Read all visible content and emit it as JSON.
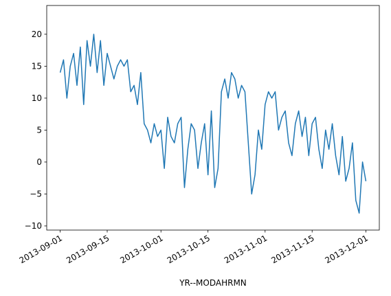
{
  "chart_data": {
    "type": "line",
    "xlabel": "YR--MODAHRMN",
    "x": [
      "2013-09-01",
      "2013-09-02",
      "2013-09-03",
      "2013-09-04",
      "2013-09-05",
      "2013-09-06",
      "2013-09-07",
      "2013-09-08",
      "2013-09-09",
      "2013-09-10",
      "2013-09-11",
      "2013-09-12",
      "2013-09-13",
      "2013-09-14",
      "2013-09-15",
      "2013-09-16",
      "2013-09-17",
      "2013-09-18",
      "2013-09-19",
      "2013-09-20",
      "2013-09-21",
      "2013-09-22",
      "2013-09-23",
      "2013-09-24",
      "2013-09-25",
      "2013-09-26",
      "2013-09-27",
      "2013-09-28",
      "2013-09-29",
      "2013-09-30",
      "2013-10-01",
      "2013-10-02",
      "2013-10-03",
      "2013-10-04",
      "2013-10-05",
      "2013-10-06",
      "2013-10-07",
      "2013-10-08",
      "2013-10-09",
      "2013-10-10",
      "2013-10-11",
      "2013-10-12",
      "2013-10-13",
      "2013-10-14",
      "2013-10-15",
      "2013-10-16",
      "2013-10-17",
      "2013-10-18",
      "2013-10-19",
      "2013-10-20",
      "2013-10-21",
      "2013-10-22",
      "2013-10-23",
      "2013-10-24",
      "2013-10-25",
      "2013-10-26",
      "2013-10-27",
      "2013-10-28",
      "2013-10-29",
      "2013-10-30",
      "2013-10-31",
      "2013-11-01",
      "2013-11-02",
      "2013-11-03",
      "2013-11-04",
      "2013-11-05",
      "2013-11-06",
      "2013-11-07",
      "2013-11-08",
      "2013-11-09",
      "2013-11-10",
      "2013-11-11",
      "2013-11-12",
      "2013-11-13",
      "2013-11-14",
      "2013-11-15",
      "2013-11-16",
      "2013-11-17",
      "2013-11-18",
      "2013-11-19",
      "2013-11-20",
      "2013-11-21",
      "2013-11-22",
      "2013-11-23",
      "2013-11-24",
      "2013-11-25",
      "2013-11-26",
      "2013-11-27",
      "2013-11-28",
      "2013-11-29",
      "2013-11-30",
      "2013-12-01"
    ],
    "values": [
      14,
      16,
      10,
      15,
      17,
      12,
      18,
      9,
      19,
      15,
      20,
      14,
      19,
      12,
      17,
      15,
      13,
      15,
      16,
      15,
      16,
      11,
      12,
      9,
      14,
      6,
      5,
      3,
      6,
      4,
      5,
      -1,
      7,
      4,
      3,
      6,
      7,
      -4,
      2,
      6,
      5,
      -1,
      3,
      6,
      -2,
      8,
      -4,
      -1,
      11,
      13,
      10,
      14,
      13,
      10,
      12,
      11,
      3,
      -5,
      -2,
      5,
      2,
      9,
      11,
      10,
      11,
      5,
      7,
      8,
      3,
      1,
      6,
      8,
      4,
      7,
      1,
      6,
      7,
      2,
      -1,
      5,
      2,
      6,
      1,
      -2,
      4,
      -3,
      -1,
      3,
      -6,
      -8,
      0,
      -3
    ],
    "color": "#1f77b4",
    "xlim": [
      "2013-08-28",
      "2013-12-05"
    ],
    "xticks": [
      "2013-09-01",
      "2013-09-15",
      "2013-10-01",
      "2013-10-15",
      "2013-11-01",
      "2013-11-15",
      "2013-12-01"
    ],
    "ylim": [
      -10.65,
      24.5
    ],
    "yticks": [
      {
        "value": -10,
        "label": "−10"
      },
      {
        "value": -5,
        "label": "−5"
      },
      0,
      5,
      10,
      15,
      20
    ]
  }
}
